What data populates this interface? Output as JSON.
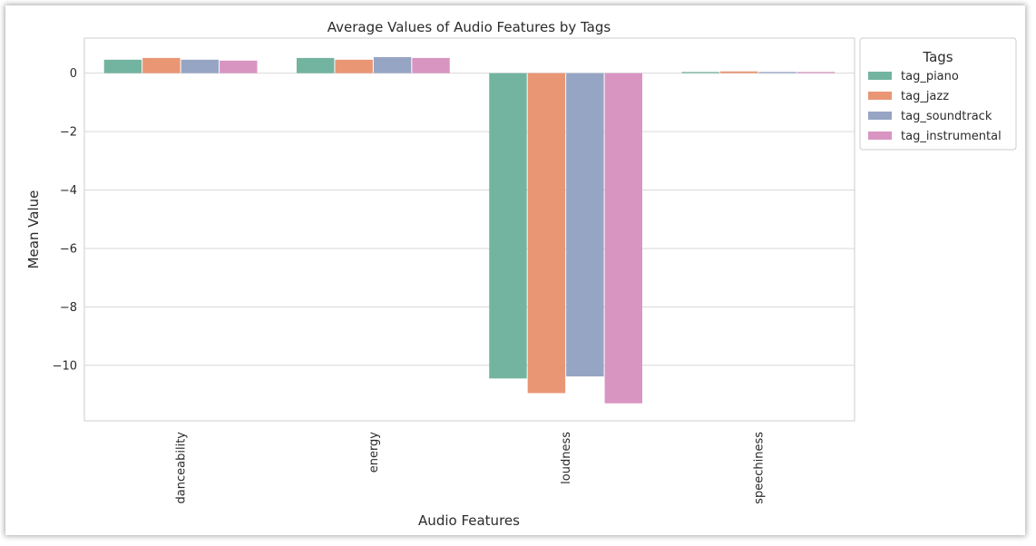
{
  "chart_data": {
    "type": "bar",
    "title": "Average Values of Audio Features by Tags",
    "xlabel": "Audio Features",
    "ylabel": "Mean Value",
    "categories": [
      "danceability",
      "energy",
      "loudness",
      "speechiness"
    ],
    "ylim": [
      -11.9,
      1.2
    ],
    "yticks": [
      0,
      -2,
      -4,
      -6,
      -8,
      -10
    ],
    "ytick_labels": [
      "0",
      "−2",
      "−4",
      "−6",
      "−8",
      "−10"
    ],
    "grid": true,
    "legend": {
      "title": "Tags",
      "placement": "outside-top-right"
    },
    "series": [
      {
        "name": "tag_piano",
        "color": "#72b4a0",
        "values": [
          0.46,
          0.52,
          -10.45,
          0.04
        ]
      },
      {
        "name": "tag_jazz",
        "color": "#e99675",
        "values": [
          0.52,
          0.46,
          -10.95,
          0.06
        ]
      },
      {
        "name": "tag_soundtrack",
        "color": "#97a5c4",
        "values": [
          0.46,
          0.55,
          -10.38,
          0.04
        ]
      },
      {
        "name": "tag_instrumental",
        "color": "#d995c2",
        "values": [
          0.43,
          0.52,
          -11.3,
          0.04
        ]
      }
    ]
  }
}
